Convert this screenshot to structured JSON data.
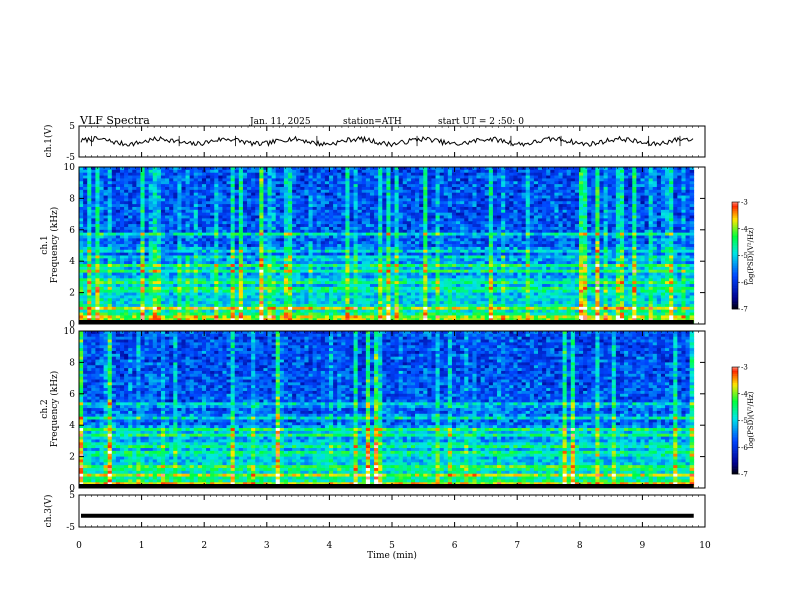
{
  "header": {
    "title": "VLF  Spectra",
    "date": "Jan. 11, 2025",
    "station": "station=ATH",
    "start_ut": "start  UT  =   2  :50: 0"
  },
  "chart_data": [
    {
      "type": "line",
      "name": "ch1-waveform",
      "ylabel": "ch.1(V)",
      "ylim": [
        -5,
        5
      ],
      "yticks": [
        "5",
        "-5"
      ],
      "x_range": [
        0,
        9.82
      ],
      "description_level_V": 0.0
    },
    {
      "type": "heatmap",
      "name": "ch1-spectrogram",
      "ylabel": "Frequency (kHz)",
      "channel_label": "ch.1",
      "ylim": [
        0,
        10
      ],
      "yticks": [
        "0",
        "2",
        "4",
        "6",
        "8",
        "10"
      ],
      "colorbar": {
        "label": "log(PSD)(V²/Hz)",
        "range": [
          -7,
          -3
        ],
        "ticks": [
          "-3",
          "-4",
          "-5",
          "-6",
          "-7"
        ]
      },
      "bands_kHz": [
        0.2,
        0.5,
        1.0,
        2.2,
        2.7,
        3.4,
        3.7,
        4.2,
        4.7,
        5.7
      ],
      "seed": 11
    },
    {
      "type": "heatmap",
      "name": "ch2-spectrogram",
      "ylabel": "Frequency (kHz)",
      "channel_label": "ch.2",
      "ylim": [
        0,
        10
      ],
      "yticks": [
        "0",
        "2",
        "4",
        "6",
        "8",
        "10"
      ],
      "colorbar": {
        "label": "log(PSD)(V²/Hz)",
        "range": [
          -7,
          -3
        ],
        "ticks": [
          "-3",
          "-4",
          "-5",
          "-6",
          "-7"
        ]
      },
      "bands_kHz": [
        0.3,
        0.8,
        1.3,
        2.2,
        2.7,
        3.4,
        3.7,
        4.5,
        5.3
      ],
      "seed": 29
    },
    {
      "type": "line",
      "name": "ch3-waveform",
      "ylabel": "ch.3(V)",
      "ylim": [
        -5,
        5
      ],
      "yticks": [
        "5",
        "-5"
      ],
      "x_range": [
        0,
        9.82
      ],
      "level_V": -1.5
    }
  ],
  "xaxis": {
    "label": "Time  (min)",
    "xlim": [
      0,
      10
    ],
    "ticks": [
      "0",
      "1",
      "2",
      "3",
      "4",
      "5",
      "6",
      "7",
      "8",
      "9",
      "10"
    ]
  }
}
